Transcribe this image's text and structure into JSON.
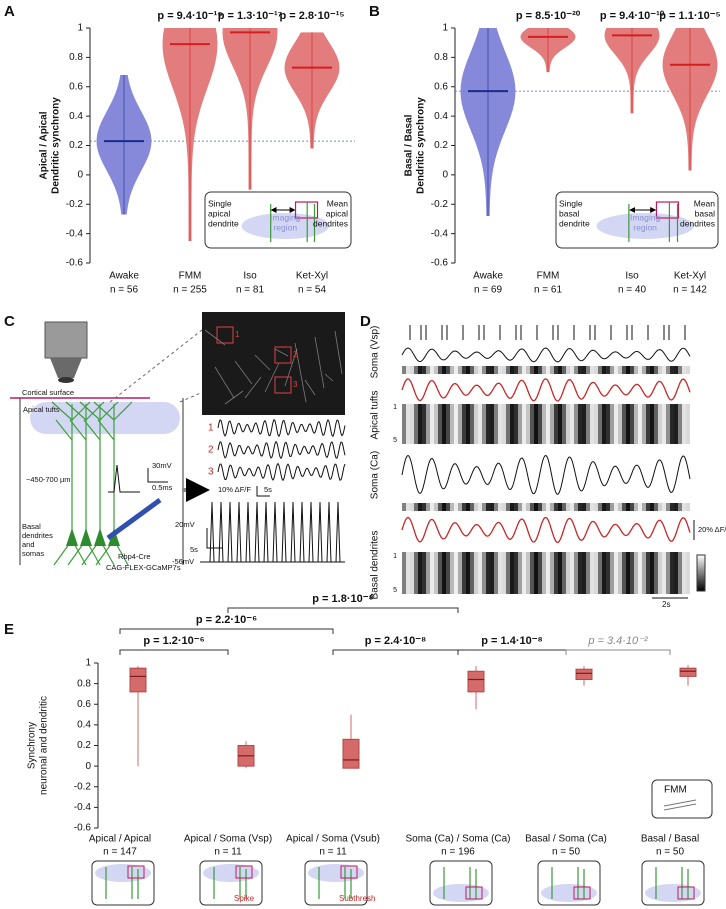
{
  "chart_data": [
    {
      "type": "violin",
      "label": "A",
      "ylabel": [
        "Apical / Apical",
        "Dendritic synchrony"
      ],
      "categories": [
        "Awake",
        "FMM",
        "Iso",
        "Ket-Xyl"
      ],
      "n_labels": [
        "n = 56",
        "n = 255",
        "n = 81",
        "n = 54"
      ],
      "p_labels": [
        null,
        "p = 9.4·10⁻¹⁹",
        "p = 1.3·10⁻¹⁷",
        "p = 2.8·10⁻¹⁵"
      ],
      "means": [
        0.23,
        0.89,
        0.97,
        0.73
      ],
      "mins": [
        -0.27,
        -0.45,
        -0.1,
        0.18
      ],
      "maxs": [
        0.68,
        1,
        1,
        0.97
      ],
      "colors": [
        "#7f83d8",
        "#e27676",
        "#e27676",
        "#e27676"
      ],
      "mean_colors": [
        "#1b2a8c",
        "#d41f1f",
        "#d41f1f",
        "#d41f1f"
      ],
      "reference": 0.23,
      "ylim": [
        -0.6,
        1
      ],
      "yticks": [
        -0.6,
        -0.4,
        -0.2,
        0,
        0.2,
        0.4,
        0.6,
        0.8,
        1
      ],
      "inset": {
        "left": [
          "Single",
          "apical",
          "dendrite"
        ],
        "middle": [
          "Imaging",
          "region"
        ],
        "right": [
          "Mean",
          "apical",
          "dendrites"
        ]
      }
    },
    {
      "type": "violin",
      "label": "B",
      "ylabel": [
        "Basal / Basal",
        "Dendritic synchrony"
      ],
      "categories": [
        "Awake",
        "FMM",
        "Iso",
        "Ket-Xyl"
      ],
      "n_labels": [
        "n = 69",
        "n = 61",
        "n = 40",
        "n = 142"
      ],
      "p_labels": [
        null,
        "p = 8.5·10⁻²⁰",
        "p = 9.4·10⁻¹⁰",
        "p = 1.1·10⁻⁵"
      ],
      "means": [
        0.57,
        0.94,
        0.95,
        0.75
      ],
      "mins": [
        -0.28,
        0.7,
        0.42,
        0.03
      ],
      "maxs": [
        1,
        1,
        1,
        1
      ],
      "colors": [
        "#7f83d8",
        "#e27676",
        "#e27676",
        "#e27676"
      ],
      "mean_colors": [
        "#1b2a8c",
        "#d41f1f",
        "#d41f1f",
        "#d41f1f"
      ],
      "reference": 0.57,
      "ylim": [
        -0.6,
        1
      ],
      "yticks": [
        -0.6,
        -0.4,
        -0.2,
        0,
        0.2,
        0.4,
        0.6,
        0.8,
        1
      ],
      "inset": {
        "left": [
          "Single",
          "basal",
          "dendrite"
        ],
        "middle": [
          "Imaging",
          "region"
        ],
        "right": [
          "Mean",
          "basal",
          "dendrites"
        ]
      }
    },
    {
      "type": "box",
      "label": "E",
      "ylabel": [
        "Synchrony",
        "neuronal and dendritic"
      ],
      "categories": [
        [
          "Apical / Apical",
          "n = 147"
        ],
        [
          "Apical / Soma (Vsp)",
          "n = 11"
        ],
        [
          "Apical / Soma (Vsub)",
          "n = 11"
        ],
        [
          "Soma (Ca) / Soma (Ca)",
          "n = 196"
        ],
        [
          "Basal / Soma (Ca)",
          "n = 50"
        ],
        [
          "Basal / Basal",
          "n = 50"
        ]
      ],
      "medians": [
        0.87,
        0.1,
        0.06,
        0.84,
        0.9,
        0.92
      ],
      "q1": [
        0.72,
        0.0,
        -0.02,
        0.72,
        0.84,
        0.87
      ],
      "q3": [
        0.95,
        0.2,
        0.26,
        0.92,
        0.94,
        0.95
      ],
      "whisker_low": [
        0.0,
        -0.02,
        -0.02,
        0.55,
        0.78,
        0.78
      ],
      "whisker_high": [
        0.97,
        0.24,
        0.5,
        0.97,
        0.97,
        0.98
      ],
      "color": "#d46a6a",
      "ylim": [
        -0.6,
        1
      ],
      "yticks": [
        -0.6,
        -0.4,
        -0.2,
        0,
        0.2,
        0.4,
        0.6,
        0.8,
        1
      ],
      "comparisons": [
        {
          "from": 0,
          "to": 1,
          "label": "p = 1.2·10⁻⁶"
        },
        {
          "from": 0,
          "to": 2,
          "label": "p = 2.2·10⁻⁶"
        },
        {
          "from": 1,
          "to": 3,
          "label": "p = 1.8·10⁻⁸"
        },
        {
          "from": 2,
          "to": 3,
          "label": "p = 2.4·10⁻⁸"
        },
        {
          "from": 3,
          "to": 4,
          "label": "p = 1.4·10⁻⁸"
        },
        {
          "from": 4,
          "to": 5,
          "label": "p = 3.4·10⁻²",
          "muted": true
        }
      ],
      "inset": "FMM",
      "icon_labels": [
        null,
        "Spike",
        "Subthresh",
        null,
        null,
        null
      ]
    }
  ],
  "panel_c": {
    "label": "C",
    "texts": [
      "Cortical surface",
      "Apical tufts",
      "~450-700 µm",
      "Basal",
      "dendrites",
      "and",
      "somas",
      "Rbp4-Cre",
      "CAG-FLEX-GCaMP7s"
    ],
    "scale": [
      "30mV",
      "0.5ms",
      "10% ΔF/F",
      "5s",
      "20mV",
      "5s",
      "-56mV"
    ],
    "roi": [
      "1",
      "2",
      "3"
    ]
  },
  "panel_d": {
    "label": "D",
    "rows": [
      "Soma (Vsp)",
      "Apical tufts",
      "Soma (Ca)",
      "Basal dendrites"
    ],
    "scale": [
      "20% ΔF/F",
      "2s"
    ],
    "axis": [
      "1",
      "5",
      "1",
      "5"
    ]
  }
}
